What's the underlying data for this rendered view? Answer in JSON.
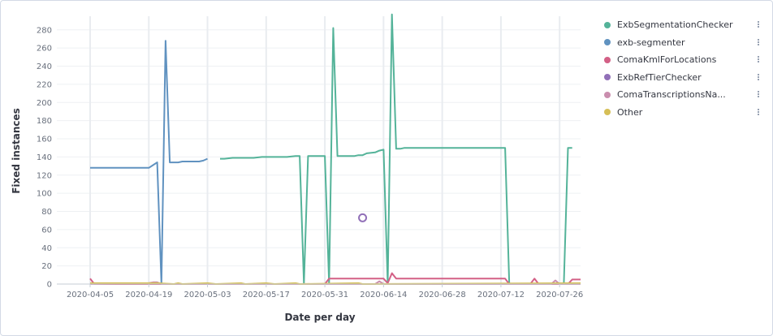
{
  "chart_data": {
    "type": "line",
    "xlabel": "Date per day",
    "ylabel": "Fixed instances",
    "x_start": "2020-04-05",
    "x_end": "2020-07-31",
    "ylim": [
      0,
      295
    ],
    "y_ticks": [
      0,
      20,
      40,
      60,
      80,
      100,
      120,
      140,
      160,
      180,
      200,
      220,
      240,
      260,
      280
    ],
    "x_ticks": [
      "2020-04-05",
      "2020-04-19",
      "2020-05-03",
      "2020-05-17",
      "2020-05-31",
      "2020-06-14",
      "2020-06-28",
      "2020-07-12",
      "2020-07-26"
    ],
    "grid": true,
    "legend_position": "right",
    "series": [
      {
        "name": "ExbSegmentationChecker",
        "color": "#54b399",
        "points": [
          [
            "2020-05-06",
            138
          ],
          [
            "2020-05-07",
            138
          ],
          [
            "2020-05-09",
            139
          ],
          [
            "2020-05-14",
            139
          ],
          [
            "2020-05-16",
            140
          ],
          [
            "2020-05-22",
            140
          ],
          [
            "2020-05-24",
            141
          ],
          [
            "2020-05-25",
            141
          ],
          [
            "2020-05-26",
            0
          ],
          [
            "2020-05-27",
            141
          ],
          [
            "2020-05-31",
            141
          ],
          [
            "2020-06-01",
            0
          ],
          [
            "2020-06-02",
            282
          ],
          [
            "2020-06-03",
            141
          ],
          [
            "2020-06-07",
            141
          ],
          [
            "2020-06-08",
            142
          ],
          [
            "2020-06-09",
            142
          ],
          [
            "2020-06-10",
            144
          ],
          [
            "2020-06-12",
            145
          ],
          [
            "2020-06-13",
            147
          ],
          [
            "2020-06-14",
            148
          ],
          [
            "2020-06-15",
            0
          ],
          [
            "2020-06-16",
            297
          ],
          [
            "2020-06-17",
            149
          ],
          [
            "2020-06-18",
            149
          ],
          [
            "2020-06-19",
            150
          ],
          [
            "2020-07-13",
            150
          ],
          [
            "2020-07-14",
            0
          ],
          [
            "2020-07-27",
            0
          ],
          [
            "2020-07-28",
            150
          ],
          [
            "2020-07-29",
            150
          ]
        ]
      },
      {
        "name": "exb-segmenter",
        "color": "#6092c0",
        "points": [
          [
            "2020-04-05",
            128
          ],
          [
            "2020-04-18",
            128
          ],
          [
            "2020-04-19",
            128
          ],
          [
            "2020-04-20",
            131
          ],
          [
            "2020-04-21",
            134
          ],
          [
            "2020-04-22",
            0
          ],
          [
            "2020-04-23",
            268
          ],
          [
            "2020-04-24",
            134
          ],
          [
            "2020-04-26",
            134
          ],
          [
            "2020-04-27",
            135
          ],
          [
            "2020-05-01",
            135
          ],
          [
            "2020-05-02",
            136
          ],
          [
            "2020-05-03",
            138
          ]
        ]
      },
      {
        "name": "ComaKmlForLocations",
        "color": "#d36086",
        "points": [
          [
            "2020-04-05",
            6
          ],
          [
            "2020-04-06",
            0
          ],
          [
            "2020-05-31",
            0
          ],
          [
            "2020-06-01",
            6
          ],
          [
            "2020-06-14",
            6
          ],
          [
            "2020-06-15",
            1
          ],
          [
            "2020-06-16",
            12
          ],
          [
            "2020-06-17",
            6
          ],
          [
            "2020-07-13",
            6
          ],
          [
            "2020-07-14",
            0
          ],
          [
            "2020-07-19",
            0
          ],
          [
            "2020-07-20",
            6
          ],
          [
            "2020-07-21",
            0
          ],
          [
            "2020-07-28",
            0
          ],
          [
            "2020-07-29",
            5
          ],
          [
            "2020-07-31",
            5
          ]
        ]
      },
      {
        "name": "ExbRefTierChecker",
        "color": "#9170b8",
        "points": [
          [
            "2020-06-09",
            73
          ]
        ]
      },
      {
        "name": "ComaTranscriptionsNa...",
        "color": "#ca8eae",
        "points": [
          [
            "2020-04-05",
            0
          ],
          [
            "2020-04-19",
            1
          ],
          [
            "2020-04-20",
            2
          ],
          [
            "2020-04-21",
            2
          ],
          [
            "2020-04-22",
            0
          ],
          [
            "2020-06-12",
            0
          ],
          [
            "2020-06-13",
            3
          ],
          [
            "2020-06-14",
            0
          ],
          [
            "2020-07-24",
            0
          ],
          [
            "2020-07-25",
            4
          ],
          [
            "2020-07-26",
            0
          ],
          [
            "2020-07-31",
            0
          ]
        ]
      },
      {
        "name": "Other",
        "color": "#d6bf57",
        "points": [
          [
            "2020-04-05",
            1
          ],
          [
            "2020-04-20",
            1
          ],
          [
            "2020-04-21",
            1
          ],
          [
            "2020-04-25",
            0
          ],
          [
            "2020-04-26",
            1
          ],
          [
            "2020-04-27",
            0
          ],
          [
            "2020-05-03",
            1
          ],
          [
            "2020-05-05",
            0
          ],
          [
            "2020-05-11",
            1
          ],
          [
            "2020-05-12",
            0
          ],
          [
            "2020-05-17",
            1
          ],
          [
            "2020-05-19",
            0
          ],
          [
            "2020-05-24",
            1
          ],
          [
            "2020-05-25",
            0
          ],
          [
            "2020-06-08",
            1
          ],
          [
            "2020-06-09",
            0
          ],
          [
            "2020-07-31",
            1
          ]
        ]
      }
    ]
  },
  "legend": {
    "items": [
      {
        "label": "ExbSegmentationChecker",
        "color": "#54b399"
      },
      {
        "label": "exb-segmenter",
        "color": "#6092c0"
      },
      {
        "label": "ComaKmlForLocations",
        "color": "#d36086"
      },
      {
        "label": "ExbRefTierChecker",
        "color": "#9170b8"
      },
      {
        "label": "ComaTranscriptionsNa...",
        "color": "#ca8eae"
      },
      {
        "label": "Other",
        "color": "#d6bf57"
      }
    ],
    "action_icon": "vertical-dots-icon"
  }
}
